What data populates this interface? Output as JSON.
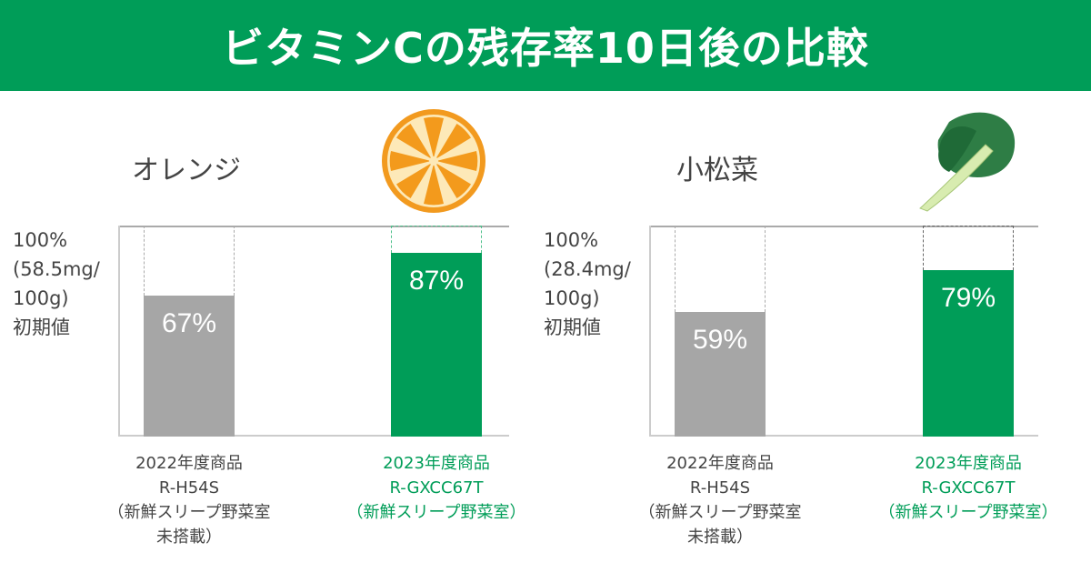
{
  "title": "ビタミンCの残存率10日後の比較",
  "colors": {
    "header": "#009d58",
    "new_product": "#009d58",
    "old_product": "#a6a6a6"
  },
  "chart_data": [
    {
      "type": "bar",
      "title": "オレンジ",
      "ylabel": "100%\n(58.5mg/\n100g)\n初期値",
      "ylim": [
        0,
        100
      ],
      "unit": "%",
      "categories": [
        "2022年度商品\nR-H54S\n（新鮮スリープ野菜室\n未搭載）",
        "2023年度商品\nR-GXCC67T\n（新鮮スリープ野菜室）"
      ],
      "values": [
        67,
        87
      ],
      "labels": [
        "67%",
        "87%"
      ],
      "illustration": "orange-slice-icon"
    },
    {
      "type": "bar",
      "title": "小松菜",
      "ylabel": "100%\n(28.4mg/\n100g)\n初期値",
      "ylim": [
        0,
        100
      ],
      "unit": "%",
      "categories": [
        "2022年度商品\nR-H54S\n（新鮮スリープ野菜室\n未搭載）",
        "2023年度商品\nR-GXCC67T\n（新鮮スリープ野菜室）"
      ],
      "values": [
        59,
        79
      ],
      "labels": [
        "59%",
        "79%"
      ],
      "illustration": "komatsuna-leaf-icon"
    }
  ]
}
